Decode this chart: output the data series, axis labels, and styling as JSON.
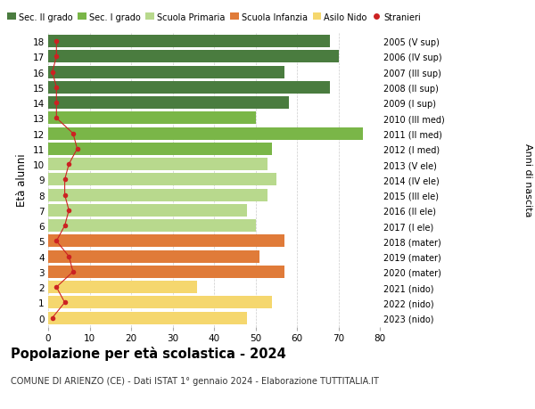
{
  "ages": [
    18,
    17,
    16,
    15,
    14,
    13,
    12,
    11,
    10,
    9,
    8,
    7,
    6,
    5,
    4,
    3,
    2,
    1,
    0
  ],
  "bar_values": [
    68,
    70,
    57,
    68,
    58,
    50,
    76,
    54,
    53,
    55,
    53,
    48,
    50,
    57,
    51,
    57,
    36,
    54,
    48
  ],
  "stranieri_values": [
    2,
    2,
    1,
    2,
    2,
    2,
    6,
    7,
    5,
    4,
    4,
    5,
    4,
    2,
    5,
    6,
    2,
    4,
    1
  ],
  "right_labels": [
    "2005 (V sup)",
    "2006 (IV sup)",
    "2007 (III sup)",
    "2008 (II sup)",
    "2009 (I sup)",
    "2010 (III med)",
    "2011 (II med)",
    "2012 (I med)",
    "2013 (V ele)",
    "2014 (IV ele)",
    "2015 (III ele)",
    "2016 (II ele)",
    "2017 (I ele)",
    "2018 (mater)",
    "2019 (mater)",
    "2020 (mater)",
    "2021 (nido)",
    "2022 (nido)",
    "2023 (nido)"
  ],
  "bar_colors": [
    "#4a7c3f",
    "#4a7c3f",
    "#4a7c3f",
    "#4a7c3f",
    "#4a7c3f",
    "#7ab648",
    "#7ab648",
    "#7ab648",
    "#b8d98d",
    "#b8d98d",
    "#b8d98d",
    "#b8d98d",
    "#b8d98d",
    "#e07b39",
    "#e07b39",
    "#e07b39",
    "#f5d76e",
    "#f5d76e",
    "#f5d76e"
  ],
  "legend_labels": [
    "Sec. II grado",
    "Sec. I grado",
    "Scuola Primaria",
    "Scuola Infanzia",
    "Asilo Nido",
    "Stranieri"
  ],
  "legend_colors": [
    "#4a7c3f",
    "#7ab648",
    "#b8d98d",
    "#e07b39",
    "#f5d76e",
    "#cc2222"
  ],
  "ylabel": "Età alunni",
  "right_ylabel": "Anni di nascita",
  "title": "Popolazione per età scolastica - 2024",
  "subtitle": "COMUNE DI ARIENZO (CE) - Dati ISTAT 1° gennaio 2024 - Elaborazione TUTTITALIA.IT",
  "xlim": [
    0,
    80
  ],
  "xticks": [
    0,
    10,
    20,
    30,
    40,
    50,
    60,
    70,
    80
  ],
  "stranieri_color": "#cc2222",
  "background_color": "#ffffff",
  "bar_height": 0.82
}
